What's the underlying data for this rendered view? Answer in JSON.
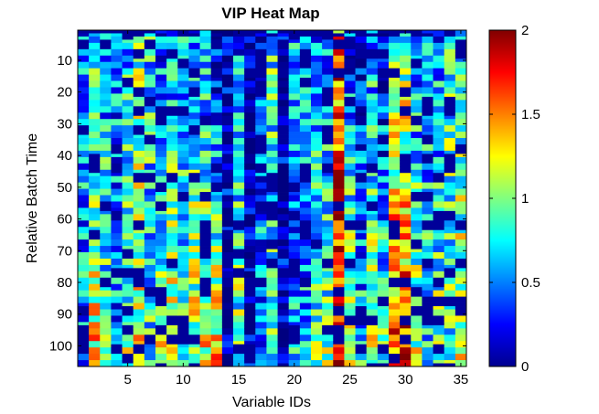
{
  "chart_data": {
    "type": "heatmap",
    "title": "VIP Heat Map",
    "xlabel": "Variable IDs",
    "ylabel": "Relative Batch Time",
    "xlim": [
      0.5,
      35.5
    ],
    "ylim": [
      0.5,
      106.5
    ],
    "y_direction": "reversed",
    "n_cols": 35,
    "n_rows": 106,
    "x_ticks": [
      5,
      10,
      15,
      20,
      25,
      30,
      35
    ],
    "y_ticks": [
      10,
      20,
      30,
      40,
      50,
      60,
      70,
      80,
      90,
      100
    ],
    "colormap": "jet",
    "clim": [
      0,
      2
    ],
    "colorbar_ticks": [
      0,
      0.5,
      1,
      1.5,
      2
    ],
    "colorbar_tick_labels": [
      "0",
      "0.5",
      "1",
      "1.5",
      "2"
    ],
    "columns_approx_vip": [
      {
        "x": 1,
        "top": 0.55,
        "bottom": 0.6
      },
      {
        "x": 2,
        "top": 0.75,
        "bottom": 1.3
      },
      {
        "x": 3,
        "top": 0.55,
        "bottom": 0.9
      },
      {
        "x": 4,
        "top": 0.5,
        "bottom": 0.5
      },
      {
        "x": 5,
        "top": 0.65,
        "bottom": 1.0
      },
      {
        "x": 6,
        "top": 0.9,
        "bottom": 1.2
      },
      {
        "x": 7,
        "top": 0.7,
        "bottom": 0.8
      },
      {
        "x": 8,
        "top": 0.4,
        "bottom": 1.1
      },
      {
        "x": 9,
        "top": 0.5,
        "bottom": 1.3
      },
      {
        "x": 10,
        "top": 0.55,
        "bottom": 0.9
      },
      {
        "x": 11,
        "top": 0.6,
        "bottom": 1.2
      },
      {
        "x": 12,
        "top": 0.5,
        "bottom": 1.3
      },
      {
        "x": 13,
        "top": 0.05,
        "bottom": 1.4
      },
      {
        "x": 14,
        "top": 0.05,
        "bottom": 0.05
      },
      {
        "x": 15,
        "top": 0.5,
        "bottom": 1.0
      },
      {
        "x": 16,
        "top": 0.05,
        "bottom": 0.1
      },
      {
        "x": 17,
        "top": 0.3,
        "bottom": 0.6
      },
      {
        "x": 18,
        "top": 0.8,
        "bottom": 0.8
      },
      {
        "x": 19,
        "top": 0.05,
        "bottom": 0.05
      },
      {
        "x": 20,
        "top": 0.55,
        "bottom": 0.6
      },
      {
        "x": 21,
        "top": 0.55,
        "bottom": 0.6
      },
      {
        "x": 22,
        "top": 0.5,
        "bottom": 0.9
      },
      {
        "x": 23,
        "top": 0.5,
        "bottom": 1.0
      },
      {
        "x": 24,
        "top": 1.5,
        "bottom": 1.9
      },
      {
        "x": 25,
        "top": 0.3,
        "bottom": 1.2
      },
      {
        "x": 26,
        "top": 0.2,
        "bottom": 0.7
      },
      {
        "x": 27,
        "top": 0.6,
        "bottom": 1.1
      },
      {
        "x": 28,
        "top": 0.2,
        "bottom": 0.9
      },
      {
        "x": 29,
        "top": 0.9,
        "bottom": 1.6
      },
      {
        "x": 30,
        "top": 0.9,
        "bottom": 1.7
      },
      {
        "x": 31,
        "top": 0.5,
        "bottom": 1.1
      },
      {
        "x": 32,
        "top": 0.5,
        "bottom": 0.8
      },
      {
        "x": 33,
        "top": 0.5,
        "bottom": 1.0
      },
      {
        "x": 34,
        "top": 0.8,
        "bottom": 0.9
      },
      {
        "x": 35,
        "top": 0.6,
        "bottom": 1.3
      }
    ]
  }
}
